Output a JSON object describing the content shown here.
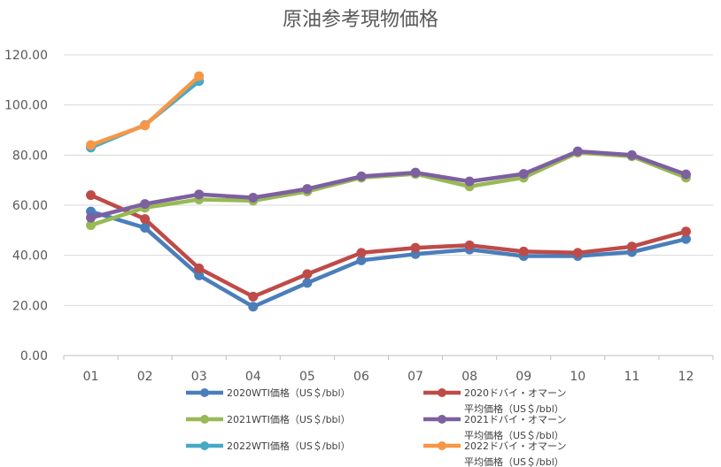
{
  "chart_data": {
    "type": "line",
    "title": "原油参考現物価格",
    "categories": [
      "01",
      "02",
      "03",
      "04",
      "05",
      "06",
      "07",
      "08",
      "09",
      "10",
      "11",
      "12"
    ],
    "ylim": [
      0,
      120
    ],
    "yticks": [
      "0.00",
      "20.00",
      "40.00",
      "60.00",
      "80.00",
      "100.00",
      "120.00"
    ],
    "grid": true,
    "legend_position": "bottom",
    "series": [
      {
        "name": "2020WTI価格（US＄/bbl）",
        "color": "#4a7ebb",
        "values": [
          57.5,
          51.0,
          32.0,
          19.5,
          29.0,
          38.0,
          40.5,
          42.3,
          39.7,
          39.7,
          41.3,
          46.5
        ]
      },
      {
        "name": "2020ドバイ・オマーン平均価格（US＄/bbl）",
        "color": "#be4b48",
        "values": [
          64.0,
          54.5,
          34.8,
          23.5,
          32.5,
          41.0,
          43.0,
          44.0,
          41.5,
          41.0,
          43.5,
          49.5
        ]
      },
      {
        "name": "2021WTI価格（US＄/bbl）",
        "color": "#98b954",
        "values": [
          52.0,
          59.0,
          62.3,
          61.8,
          65.5,
          71.0,
          72.5,
          67.5,
          71.0,
          81.0,
          79.5,
          71.0
        ]
      },
      {
        "name": "2021ドバイ・オマーン平均価格（US＄/bbl）",
        "color": "#7d60a0",
        "values": [
          55.0,
          60.5,
          64.3,
          63.0,
          66.5,
          71.5,
          73.0,
          69.5,
          72.5,
          81.5,
          80.0,
          72.3
        ]
      },
      {
        "name": "2022WTI価格（US＄/bbl）",
        "color": "#46aac5",
        "values": [
          83.0,
          92.0,
          109.5,
          null,
          null,
          null,
          null,
          null,
          null,
          null,
          null,
          null
        ]
      },
      {
        "name": "2022ドバイ・オマーン平均価格（US＄/bbl）",
        "color": "#f79646",
        "values": [
          84.0,
          91.8,
          111.5,
          null,
          null,
          null,
          null,
          null,
          null,
          null,
          null,
          null
        ]
      }
    ],
    "legend_lines": [
      [
        "2020WTI価格（US＄/bbl）"
      ],
      [
        "2020ドバイ・オマーン",
        "平均価格（US＄/bbl）"
      ],
      [
        "2021WTI価格（US＄/bbl）"
      ],
      [
        "2021ドバイ・オマーン",
        "平均価格（US＄/bbl）"
      ],
      [
        "2022WTI価格（US＄/bbl）"
      ],
      [
        "2022ドバイ・オマーン",
        "平均価格（US＄/bbl）"
      ]
    ]
  }
}
